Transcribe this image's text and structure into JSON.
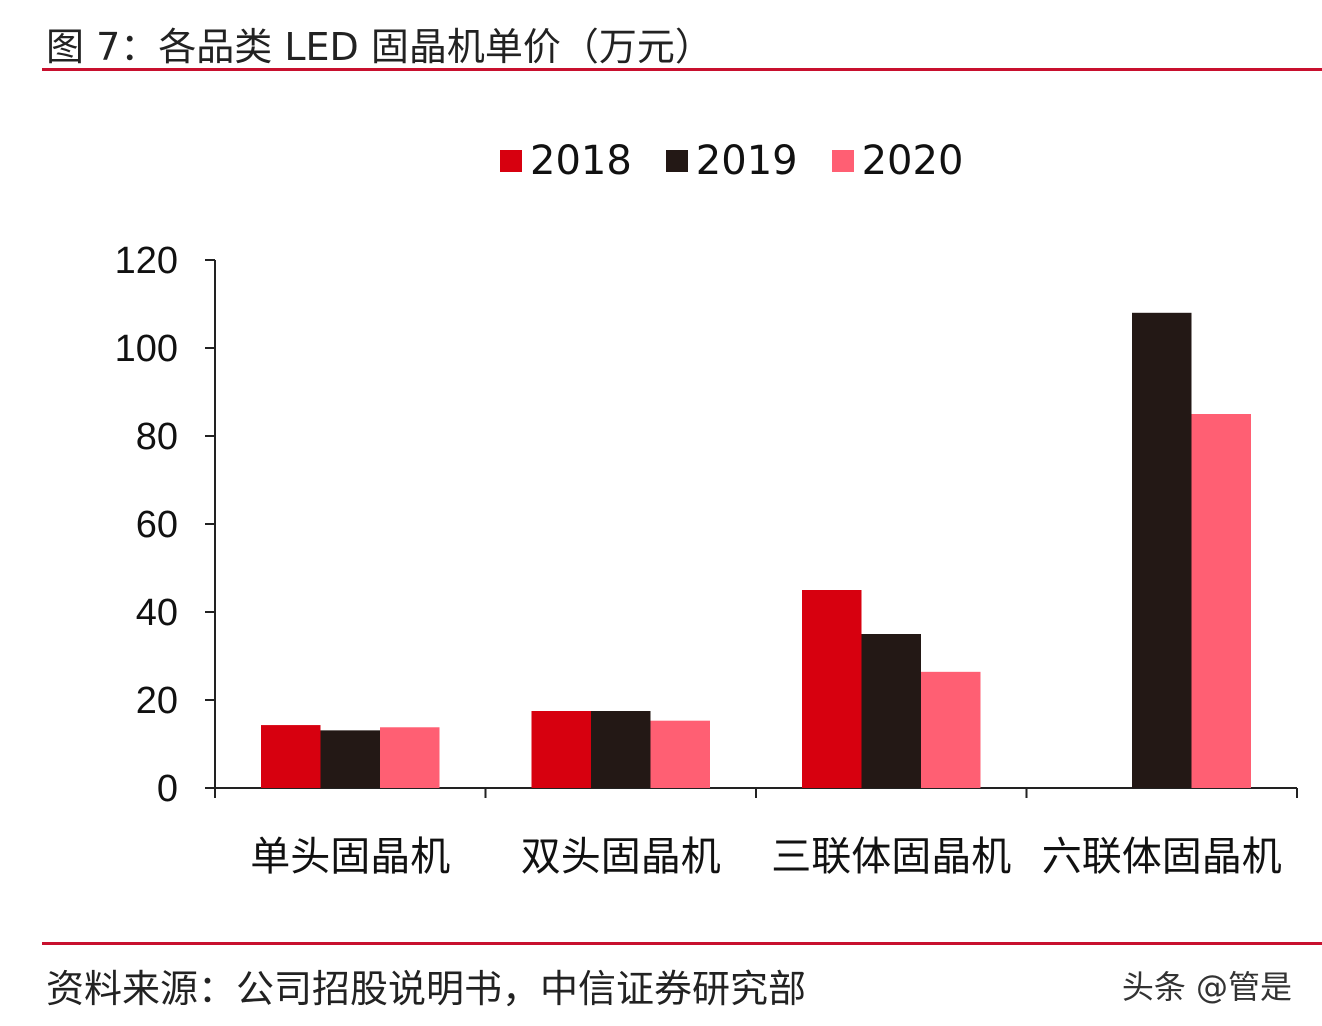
{
  "title": "图 7：各品类 LED 固晶机单价（万元）",
  "source": "资料来源：公司招股说明书，中信证券研究部",
  "watermark": "头条 @管是",
  "chart_data": {
    "type": "bar",
    "title": "图 7：各品类 LED 固晶机单价（万元）",
    "xlabel": "",
    "ylabel": "",
    "categories": [
      "单头固晶机",
      "双头固晶机",
      "三联体固晶机",
      "六联体固晶机"
    ],
    "series": [
      {
        "name": "2018",
        "color": "#d7000f",
        "values": [
          14.3,
          17.5,
          45,
          null
        ]
      },
      {
        "name": "2019",
        "color": "#231815",
        "values": [
          13.1,
          17.5,
          35,
          108
        ]
      },
      {
        "name": "2020",
        "color": "#ff5f73",
        "values": [
          13.8,
          15.3,
          26.4,
          85
        ]
      }
    ],
    "ylim": [
      0,
      120
    ],
    "yticks": [
      "0",
      "20",
      "40",
      "60",
      "80",
      "100",
      "120"
    ],
    "grid": false,
    "legend": "top-center"
  }
}
